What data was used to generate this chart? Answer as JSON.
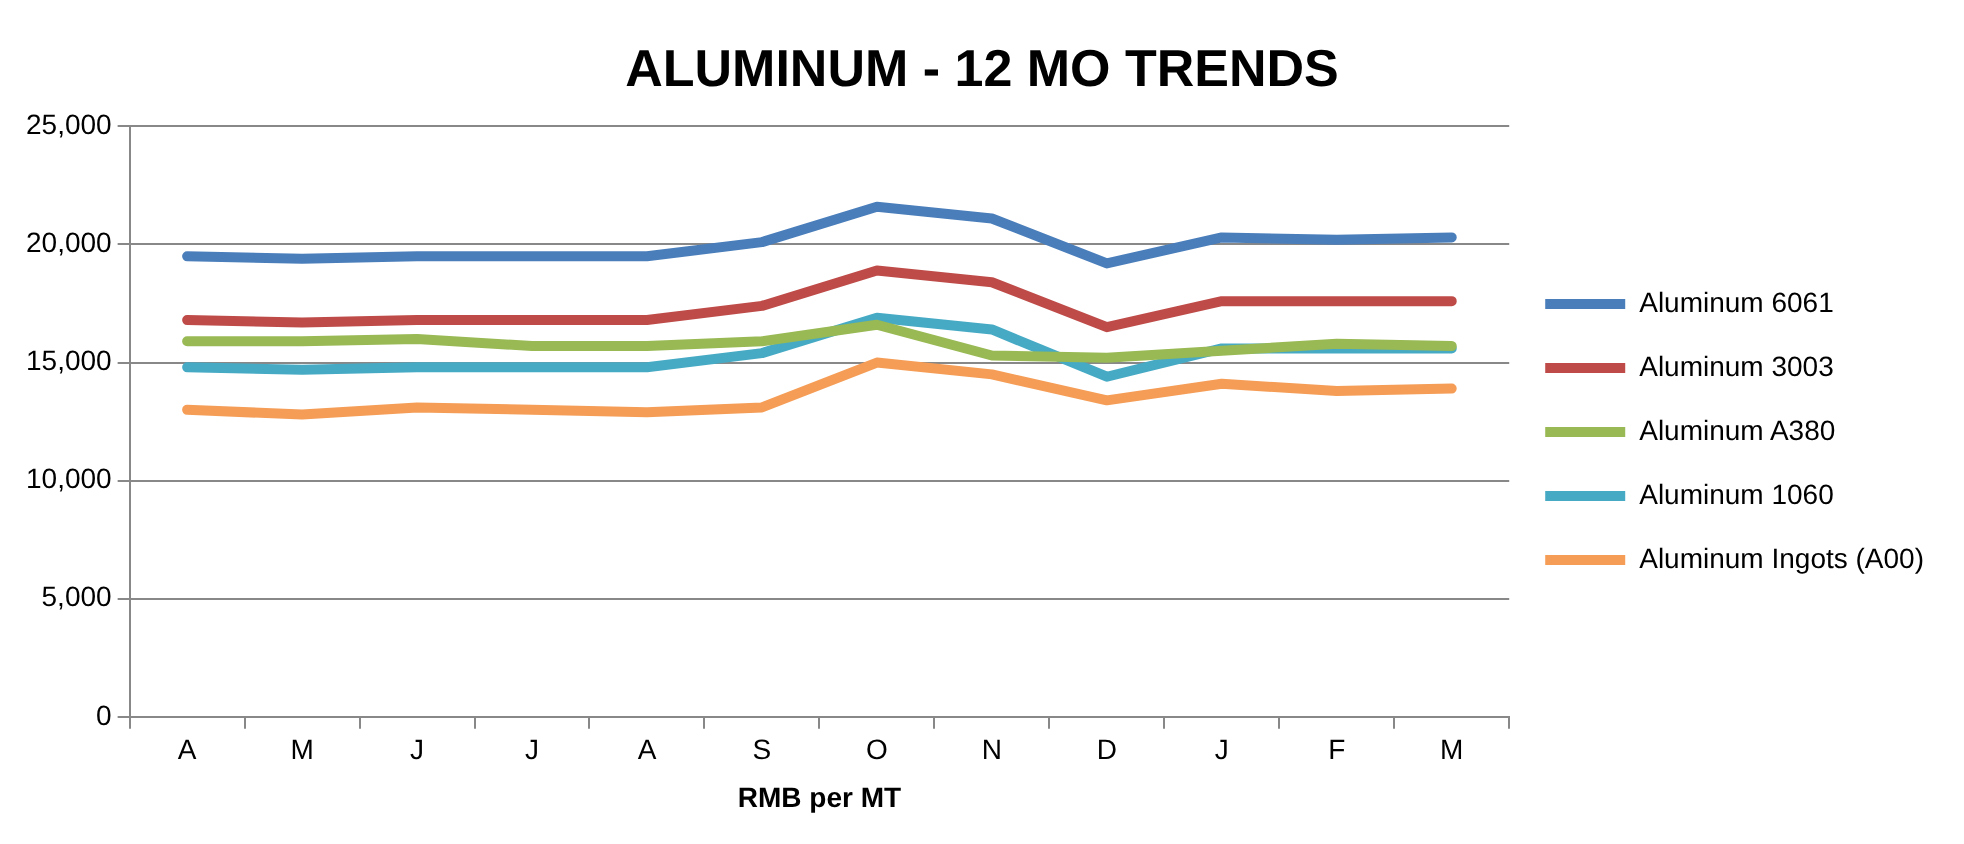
{
  "chart_data": {
    "type": "line",
    "title": "ALUMINUM - 12 MO TRENDS",
    "xlabel": "RMB per MT",
    "categories": [
      "A",
      "M",
      "J",
      "J",
      "A",
      "S",
      "O",
      "N",
      "D",
      "J",
      "F",
      "M"
    ],
    "ylim": [
      0,
      25000
    ],
    "yticks": [
      {
        "value": 0,
        "label": "0"
      },
      {
        "value": 5000,
        "label": "5,000"
      },
      {
        "value": 10000,
        "label": "10,000"
      },
      {
        "value": 15000,
        "label": "15,000"
      },
      {
        "value": 20000,
        "label": "20,000"
      },
      {
        "value": 25000,
        "label": "25,000"
      }
    ],
    "grid": "y",
    "legend": "right",
    "marker": "none",
    "line_style": "solid",
    "series": [
      {
        "name": "Aluminum 6061",
        "color": "#4a7ebb",
        "values": [
          19500,
          19400,
          19500,
          19500,
          19500,
          20100,
          21600,
          21100,
          19200,
          20300,
          20200,
          20300
        ]
      },
      {
        "name": "Aluminum 3003",
        "color": "#be4b48",
        "values": [
          16800,
          16700,
          16800,
          16800,
          16800,
          17400,
          18900,
          18400,
          16500,
          17600,
          17600,
          17600
        ]
      },
      {
        "name": "Aluminum A380",
        "color": "#98b954",
        "values": [
          15900,
          15900,
          16000,
          15700,
          15700,
          15900,
          16600,
          15300,
          15200,
          15500,
          15800,
          15700
        ]
      },
      {
        "name": "Aluminum 1060",
        "color": "#46aac5",
        "values": [
          14800,
          14700,
          14800,
          14800,
          14800,
          15400,
          16900,
          16400,
          14400,
          15600,
          15600,
          15600
        ]
      },
      {
        "name": "Aluminum Ingots (A00)",
        "color": "#f59d56",
        "values": [
          13000,
          12800,
          13100,
          13000,
          12900,
          13100,
          15000,
          14500,
          13400,
          14100,
          13800,
          13900
        ]
      }
    ]
  }
}
